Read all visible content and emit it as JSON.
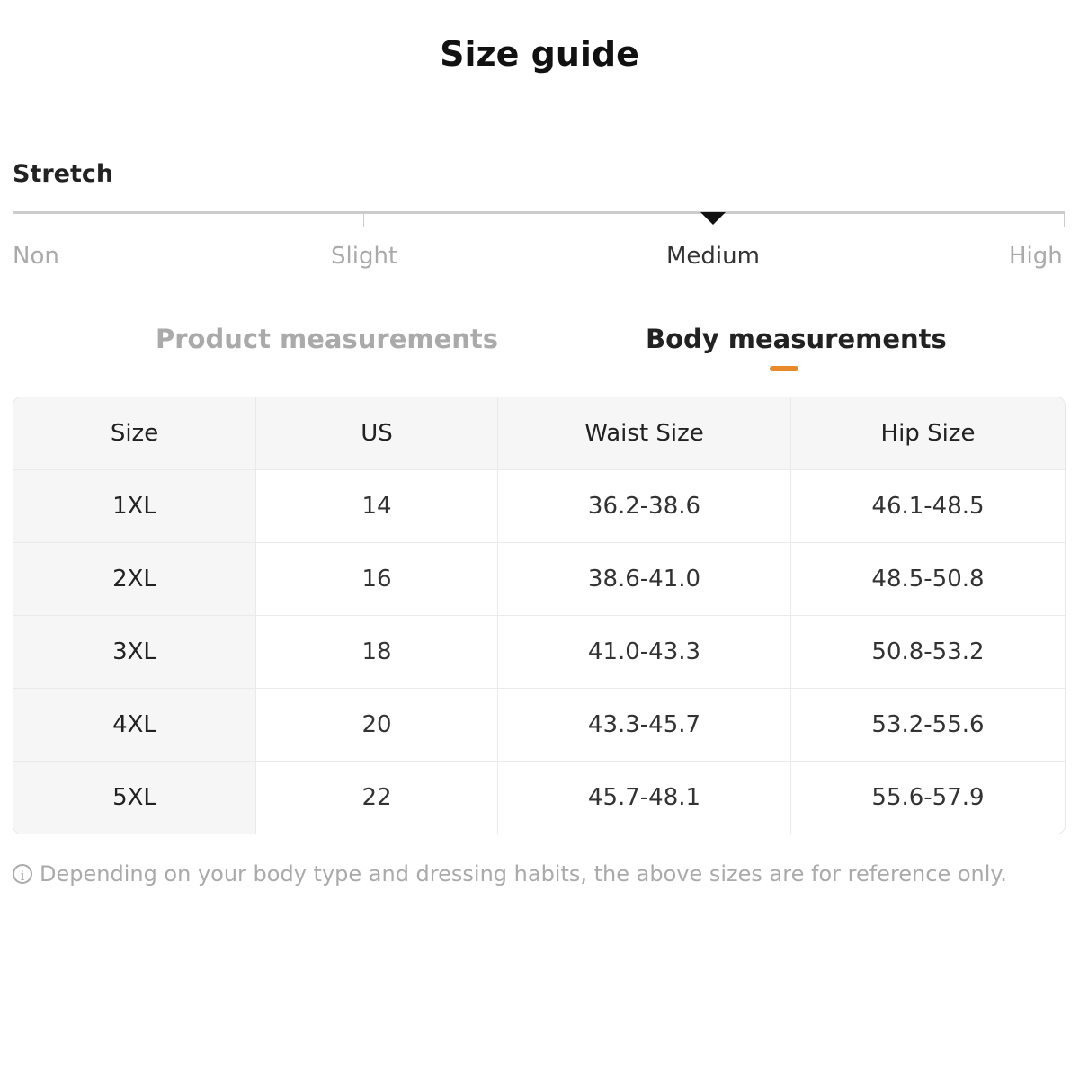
{
  "title": "Size guide",
  "stretch": {
    "label": "Stretch",
    "levels": [
      "Non",
      "Slight",
      "Medium",
      "High"
    ],
    "selected_index": 2,
    "selected": "Medium"
  },
  "tabs": [
    {
      "label": "Product measurements",
      "active": false
    },
    {
      "label": "Body measurements",
      "active": true
    }
  ],
  "colors": {
    "accent": "#e8892a"
  },
  "table": {
    "headers": [
      "Size",
      "US",
      "Waist Size",
      "Hip Size"
    ],
    "rows": [
      [
        "1XL",
        "14",
        "36.2-38.6",
        "46.1-48.5"
      ],
      [
        "2XL",
        "16",
        "38.6-41.0",
        "48.5-50.8"
      ],
      [
        "3XL",
        "18",
        "41.0-43.3",
        "50.8-53.2"
      ],
      [
        "4XL",
        "20",
        "43.3-45.7",
        "53.2-55.6"
      ],
      [
        "5XL",
        "22",
        "45.7-48.1",
        "55.6-57.9"
      ]
    ]
  },
  "note": {
    "icon": "info-icon",
    "text": "Depending on your body type and dressing habits, the above sizes are for reference only."
  }
}
